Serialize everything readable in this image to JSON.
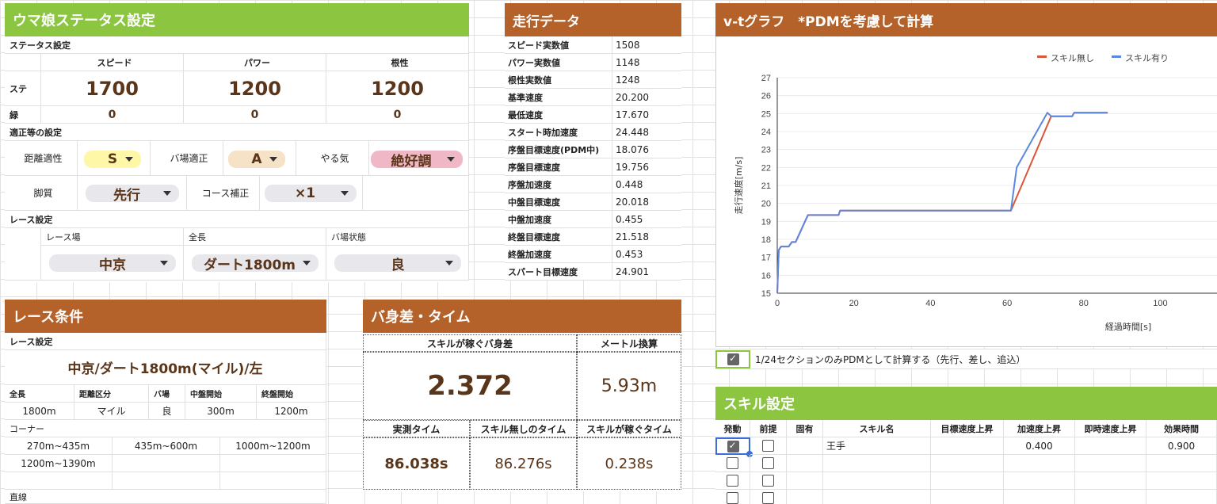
{
  "uma": {
    "title": "ウマ娘ステータス設定",
    "status_label": "ステータス設定",
    "col_speed": "スピード",
    "col_power": "パワー",
    "col_guts": "根性",
    "row_stat": "ステ",
    "row_green": "緑",
    "speed": "1700",
    "power": "1200",
    "guts": "1200",
    "green_speed": "0",
    "green_power": "0",
    "green_guts": "0",
    "aptitude_label": "適正等の設定",
    "dist_label": "距離適性",
    "dist_value": "S",
    "ground_label": "バ場適正",
    "ground_value": "A",
    "mood_label": "やる気",
    "mood_value": "絶好調",
    "style_label": "脚質",
    "style_value": "先行",
    "course_label": "コース補正",
    "course_value": "×1",
    "race_label": "レース設定",
    "venue_label": "レース場",
    "venue_value": "中京",
    "length_label": "全長",
    "length_value": "ダート1800m",
    "track_label": "バ場状態",
    "track_value": "良"
  },
  "run": {
    "title": "走行データ",
    "rows": [
      {
        "label": "スピード実数値",
        "value": "1508"
      },
      {
        "label": "パワー実数値",
        "value": "1148"
      },
      {
        "label": "根性実数値",
        "value": "1248"
      },
      {
        "label": "基準速度",
        "value": "20.200"
      },
      {
        "label": "最低速度",
        "value": "17.670"
      },
      {
        "label": "スタート時加速度",
        "value": "24.448"
      },
      {
        "label": "序盤目標速度(PDM中)",
        "value": "18.076"
      },
      {
        "label": "序盤目標速度",
        "value": "19.756"
      },
      {
        "label": "序盤加速度",
        "value": "0.448"
      },
      {
        "label": "中盤目標速度",
        "value": "20.018"
      },
      {
        "label": "中盤加速度",
        "value": "0.455"
      },
      {
        "label": "終盤目標速度",
        "value": "21.518"
      },
      {
        "label": "終盤加速度",
        "value": "0.453"
      },
      {
        "label": "スパート目標速度",
        "value": "24.901"
      }
    ]
  },
  "graph": {
    "title": "v-tグラフ　*PDMを考慮して計算",
    "pdm_checkbox_label": "1/24セクションのみPDMとして計算する（先行、差し、追込）",
    "pdm_checked": true
  },
  "chart_data": {
    "type": "line",
    "xlabel": "経過時間[s]",
    "ylabel": "走行速度[m/s]",
    "xlim": [
      0,
      115
    ],
    "ylim": [
      15,
      27
    ],
    "xticks": [
      "0",
      "20",
      "40",
      "60",
      "80",
      "100"
    ],
    "yticks": [
      "15",
      "16",
      "17",
      "18",
      "19",
      "20",
      "21",
      "22",
      "23",
      "24",
      "25",
      "26",
      "27"
    ],
    "legend": "top-right",
    "series": [
      {
        "name": "スキル無し",
        "color": "#d9573a",
        "x": [
          0,
          0.4,
          1.0,
          3.0,
          3.8,
          4.8,
          8.0,
          16.0,
          16.4,
          61.0,
          71.5,
          72.0,
          77.0,
          77.5,
          86.3
        ],
        "y": [
          15.0,
          17.4,
          17.6,
          17.6,
          17.85,
          17.85,
          19.35,
          19.35,
          19.6,
          19.6,
          24.85,
          24.85,
          24.85,
          25.05,
          25.05
        ]
      },
      {
        "name": "スキル有り",
        "color": "#5c87df",
        "x": [
          0,
          0.4,
          1.0,
          3.0,
          3.8,
          4.8,
          8.0,
          16.0,
          16.4,
          61.0,
          62.5,
          70.5,
          71.5,
          77.0,
          77.5,
          86.0
        ],
        "y": [
          15.0,
          17.4,
          17.6,
          17.6,
          17.85,
          17.85,
          19.35,
          19.35,
          19.6,
          19.6,
          22.0,
          25.05,
          24.85,
          24.85,
          25.05,
          25.05
        ]
      }
    ]
  },
  "cond": {
    "title": "レース条件",
    "race_label": "レース設定",
    "race_name": "中京/ダート1800m(マイル)/左",
    "h_length": "全長",
    "h_dist": "距離区分",
    "h_ground": "バ場",
    "h_mid": "中盤開始",
    "h_final": "終盤開始",
    "v_length": "1800m",
    "v_dist": "マイル",
    "v_ground": "良",
    "v_mid": "300m",
    "v_final": "1200m",
    "corner_label": "コーナー",
    "corners": [
      "270m~435m",
      "435m~600m",
      "1000m~1200m",
      "1200m~1390m"
    ],
    "straight_label": "直線"
  },
  "gap": {
    "title": "バ身差・タイム",
    "h_bashin": "スキルが稼ぐバ身差",
    "h_meter": "メートル換算",
    "bashin": "2.372",
    "meter": "5.93m",
    "h_actual": "実測タイム",
    "h_noskill": "スキル無しのタイム",
    "h_gain": "スキルが稼ぐタイム",
    "actual": "86.038s",
    "noskill": "86.276s",
    "gain": "0.238s"
  },
  "skill": {
    "title": "スキル設定",
    "headers": [
      "発動",
      "前提",
      "固有",
      "スキル名",
      "目標速度上昇",
      "加速度上昇",
      "即時速度上昇",
      "効果時間"
    ],
    "rows": [
      {
        "active": true,
        "prereq": false,
        "name": "王手",
        "accel": "0.400",
        "duration": "0.900"
      },
      {
        "active": false,
        "prereq": false,
        "name": "",
        "accel": "",
        "duration": ""
      },
      {
        "active": false,
        "prereq": false,
        "name": "",
        "accel": "",
        "duration": ""
      },
      {
        "active": false,
        "prereq": false,
        "name": "",
        "accel": "",
        "duration": ""
      }
    ]
  }
}
